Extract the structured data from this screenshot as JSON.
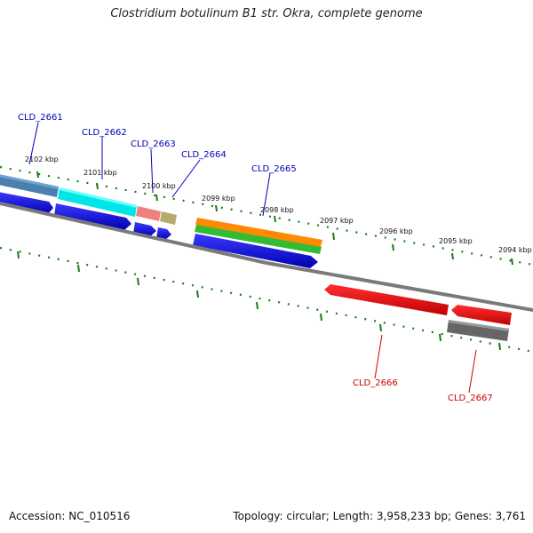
{
  "title": "Clostridium botulinum B1 str. Okra, complete genome",
  "footer": {
    "accession": "Accession: NC_010516",
    "topology": "Topology: circular; Length: 3,958,233 bp; Genes: 3,761"
  },
  "scale_labels": [
    "2102 kbp",
    "2101 kbp",
    "2100 kbp",
    "2099 kbp",
    "2098 kbp",
    "2097 kbp",
    "2096 kbp",
    "2095 kbp",
    "2094 kbp"
  ],
  "genes": [
    {
      "name": "CLD_2661",
      "strand": "+",
      "color": "#0000bb"
    },
    {
      "name": "CLD_2662",
      "strand": "+",
      "color": "#0000bb"
    },
    {
      "name": "CLD_2663",
      "strand": "+",
      "color": "#0000bb"
    },
    {
      "name": "CLD_2664",
      "strand": "+",
      "color": "#0000bb"
    },
    {
      "name": "CLD_2665",
      "strand": "+",
      "color": "#0000bb"
    },
    {
      "name": "CLD_2666",
      "strand": "-",
      "color": "#cc0000"
    },
    {
      "name": "CLD_2667",
      "strand": "-",
      "color": "#cc0000"
    }
  ],
  "colors": {
    "forward_cds": "#0000ee",
    "reverse_cds": "#ee0000",
    "backbone": "#7a7a7a",
    "ticks": "#1a7a1a"
  }
}
